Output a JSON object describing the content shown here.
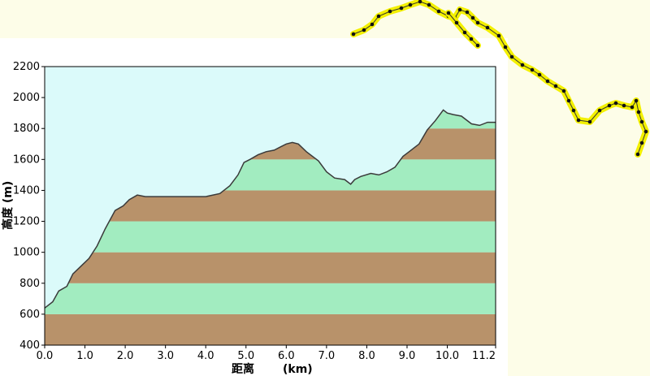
{
  "chart_data": {
    "type": "area",
    "xlabel": "距离",
    "xunit": "(km)",
    "ylabel": "高度 (m)",
    "xlim": [
      0,
      11.2
    ],
    "ylim": [
      400,
      2200
    ],
    "xticks": [
      "0.0",
      "1.0",
      "2.0",
      "3.0",
      "4.0",
      "5.0",
      "6.0",
      "7.0",
      "8.0",
      "9.0",
      "10.0",
      "11.2"
    ],
    "xtick_values": [
      0,
      1,
      2,
      3,
      4,
      5,
      6,
      7,
      8,
      9,
      10,
      11.2
    ],
    "yticks": [
      "400",
      "600",
      "800",
      "1000",
      "1200",
      "1400",
      "1600",
      "1800",
      "2000",
      "2200"
    ],
    "ytick_values": [
      400,
      600,
      800,
      1000,
      1200,
      1400,
      1600,
      1800,
      2000,
      2200
    ],
    "band_interval": 200,
    "grid": false,
    "series": [
      {
        "x": [
          0,
          0.2,
          0.35,
          0.55,
          0.7,
          0.9,
          1.1,
          1.3,
          1.5,
          1.75,
          1.95,
          2.1,
          2.3,
          2.5,
          3.0,
          3.5,
          4.0,
          4.35,
          4.6,
          4.8,
          4.95,
          5.1,
          5.3,
          5.5,
          5.7,
          5.85,
          6.0,
          6.15,
          6.3,
          6.5,
          6.8,
          7.0,
          7.2,
          7.45,
          7.6,
          7.7,
          7.85,
          8.1,
          8.3,
          8.5,
          8.7,
          8.9,
          9.05,
          9.3,
          9.5,
          9.7,
          9.9,
          10.0,
          10.15,
          10.35,
          10.6,
          10.8,
          11.0,
          11.2
        ],
        "y": [
          640,
          680,
          750,
          780,
          860,
          910,
          960,
          1040,
          1150,
          1270,
          1300,
          1340,
          1370,
          1360,
          1360,
          1360,
          1360,
          1380,
          1430,
          1500,
          1580,
          1600,
          1630,
          1650,
          1660,
          1680,
          1700,
          1710,
          1700,
          1650,
          1590,
          1520,
          1480,
          1470,
          1440,
          1470,
          1490,
          1510,
          1500,
          1520,
          1550,
          1620,
          1650,
          1700,
          1790,
          1850,
          1920,
          1900,
          1890,
          1880,
          1830,
          1820,
          1840,
          1840
        ]
      }
    ],
    "colors": {
      "sky": "#dbfafa",
      "band_brown": "#b8926a",
      "band_green": "#a2ecc0",
      "outline": "#3a3a3a",
      "track": "#f3f000",
      "track_dot": "#111111"
    }
  },
  "map_track": {
    "icon": "route-track-overlay"
  }
}
